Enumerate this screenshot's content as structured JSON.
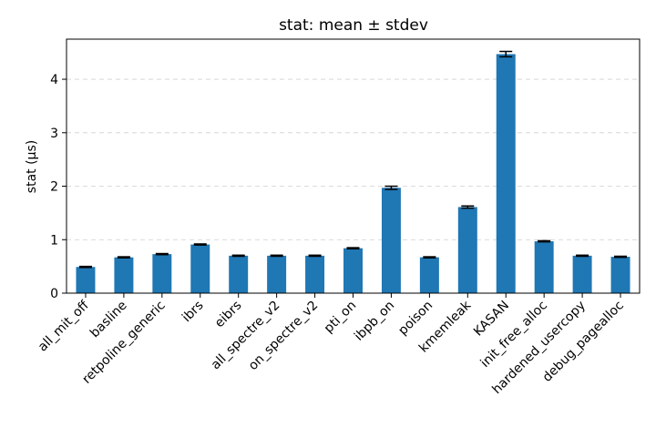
{
  "chart_data": {
    "type": "bar",
    "title": "stat: mean ± stdev",
    "xlabel": "",
    "ylabel": "stat (µs)",
    "categories": [
      "all_mit_off",
      "basline",
      "retpoline_generic",
      "ibrs",
      "eibrs",
      "all_spectre_v2",
      "on_spectre_v2",
      "pti_on",
      "ibpb_on",
      "poison",
      "kmemleak",
      "KASAN",
      "init_free_alloc",
      "hardened_usercopy",
      "debug_pagealloc"
    ],
    "values": [
      0.49,
      0.67,
      0.73,
      0.91,
      0.7,
      0.7,
      0.7,
      0.84,
      1.97,
      0.67,
      1.61,
      4.47,
      0.97,
      0.7,
      0.68
    ],
    "errors": [
      0.01,
      0.01,
      0.01,
      0.01,
      0.01,
      0.01,
      0.01,
      0.01,
      0.03,
      0.01,
      0.02,
      0.05,
      0.01,
      0.01,
      0.01
    ],
    "ylim": [
      0,
      4.75
    ],
    "yticks": [
      0,
      1,
      2,
      3,
      4
    ],
    "grid": "y-dashed",
    "bar_color": "#1f77b4",
    "error_color": "#000000"
  }
}
